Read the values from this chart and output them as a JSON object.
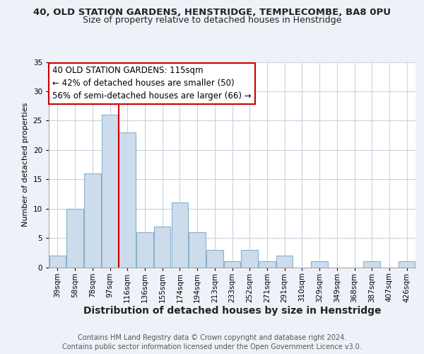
{
  "title": "40, OLD STATION GARDENS, HENSTRIDGE, TEMPLECOMBE, BA8 0PU",
  "subtitle": "Size of property relative to detached houses in Henstridge",
  "xlabel": "Distribution of detached houses by size in Henstridge",
  "ylabel": "Number of detached properties",
  "bin_labels": [
    "39sqm",
    "58sqm",
    "78sqm",
    "97sqm",
    "116sqm",
    "136sqm",
    "155sqm",
    "174sqm",
    "194sqm",
    "213sqm",
    "233sqm",
    "252sqm",
    "271sqm",
    "291sqm",
    "310sqm",
    "329sqm",
    "349sqm",
    "368sqm",
    "387sqm",
    "407sqm",
    "426sqm"
  ],
  "bar_values": [
    2,
    10,
    16,
    26,
    23,
    6,
    7,
    11,
    6,
    3,
    1,
    3,
    1,
    2,
    0,
    1,
    0,
    0,
    1,
    0,
    1
  ],
  "n_bins": 21,
  "bar_color": "#ccdcec",
  "bar_edge_color": "#8ab0cc",
  "reference_line_x": 4,
  "reference_line_color": "#cc0000",
  "ylim": [
    0,
    35
  ],
  "yticks": [
    0,
    5,
    10,
    15,
    20,
    25,
    30,
    35
  ],
  "annotation_title": "40 OLD STATION GARDENS: 115sqm",
  "annotation_line1": "← 42% of detached houses are smaller (50)",
  "annotation_line2": "56% of semi-detached houses are larger (66) →",
  "annotation_box_color": "#ffffff",
  "annotation_box_edge": "#cc0000",
  "footer_line1": "Contains HM Land Registry data © Crown copyright and database right 2024.",
  "footer_line2": "Contains public sector information licensed under the Open Government Licence v3.0.",
  "background_color": "#eef2f8",
  "plot_background": "#ffffff",
  "grid_color": "#c8d4e0",
  "title_fontsize": 9.5,
  "subtitle_fontsize": 9,
  "ylabel_fontsize": 8,
  "xlabel_fontsize": 10,
  "tick_fontsize": 7.5,
  "annotation_fontsize": 8.5,
  "footer_fontsize": 7
}
